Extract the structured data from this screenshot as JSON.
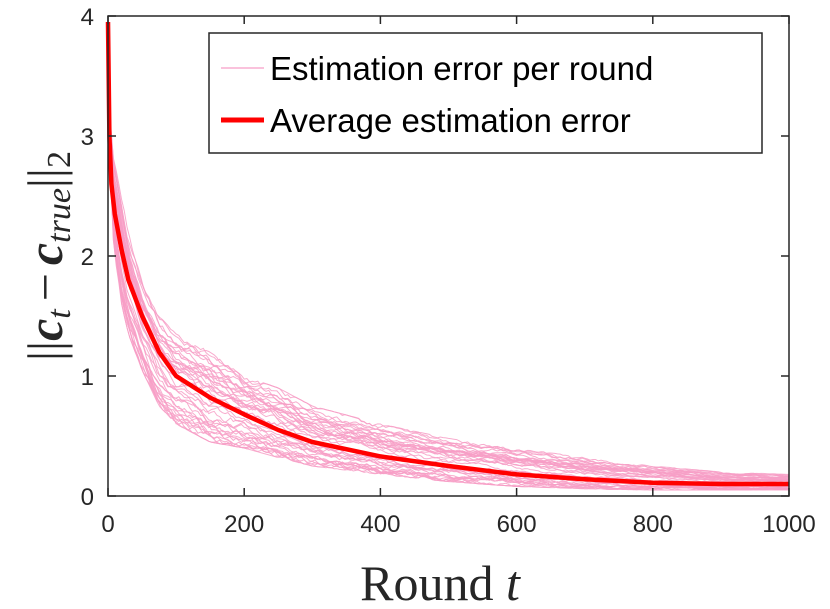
{
  "chart_data": {
    "type": "line",
    "xlabel": "Round",
    "xlabel_var": "t",
    "ylabel": {
      "open": "||",
      "c1": "c",
      "sub1": "t",
      "minus": "−",
      "c2": "c",
      "sub2": "true",
      "close": "||",
      "norm_sub": "2"
    },
    "xlim": [
      0,
      1000
    ],
    "ylim": [
      0,
      4
    ],
    "xticks": [
      0,
      200,
      400,
      600,
      800,
      1000
    ],
    "yticks": [
      0,
      1,
      2,
      3,
      4
    ],
    "grid": false,
    "legend_position": "top-right",
    "colors": {
      "per_round": "#f79ec6",
      "average": "#ff0000",
      "axis": "#262626"
    },
    "series": [
      {
        "name": "Estimation error per round",
        "style": "thin",
        "color": "#f79ec6",
        "note_multiple_runs": 40,
        "x": [
          0,
          5,
          10,
          20,
          30,
          50,
          75,
          100,
          150,
          200,
          250,
          300,
          400,
          500,
          600,
          700,
          800,
          900,
          1000
        ],
        "y_band_low": [
          3.95,
          2.3,
          2.0,
          1.6,
          1.35,
          1.05,
          0.75,
          0.6,
          0.45,
          0.4,
          0.32,
          0.25,
          0.18,
          0.12,
          0.08,
          0.06,
          0.05,
          0.05,
          0.05
        ],
        "y_band_high": [
          3.95,
          2.9,
          2.8,
          2.5,
          2.2,
          1.8,
          1.5,
          1.35,
          1.2,
          1.0,
          0.9,
          0.75,
          0.6,
          0.48,
          0.4,
          0.32,
          0.25,
          0.2,
          0.18
        ]
      },
      {
        "name": "Average estimation error",
        "style": "thick",
        "color": "#ff0000",
        "x": [
          0,
          2,
          5,
          10,
          20,
          30,
          50,
          75,
          100,
          150,
          200,
          250,
          300,
          400,
          500,
          600,
          700,
          800,
          900,
          1000
        ],
        "y": [
          3.95,
          3.0,
          2.6,
          2.35,
          2.05,
          1.8,
          1.5,
          1.2,
          1.0,
          0.82,
          0.68,
          0.55,
          0.45,
          0.33,
          0.25,
          0.18,
          0.14,
          0.11,
          0.1,
          0.1
        ]
      }
    ]
  }
}
